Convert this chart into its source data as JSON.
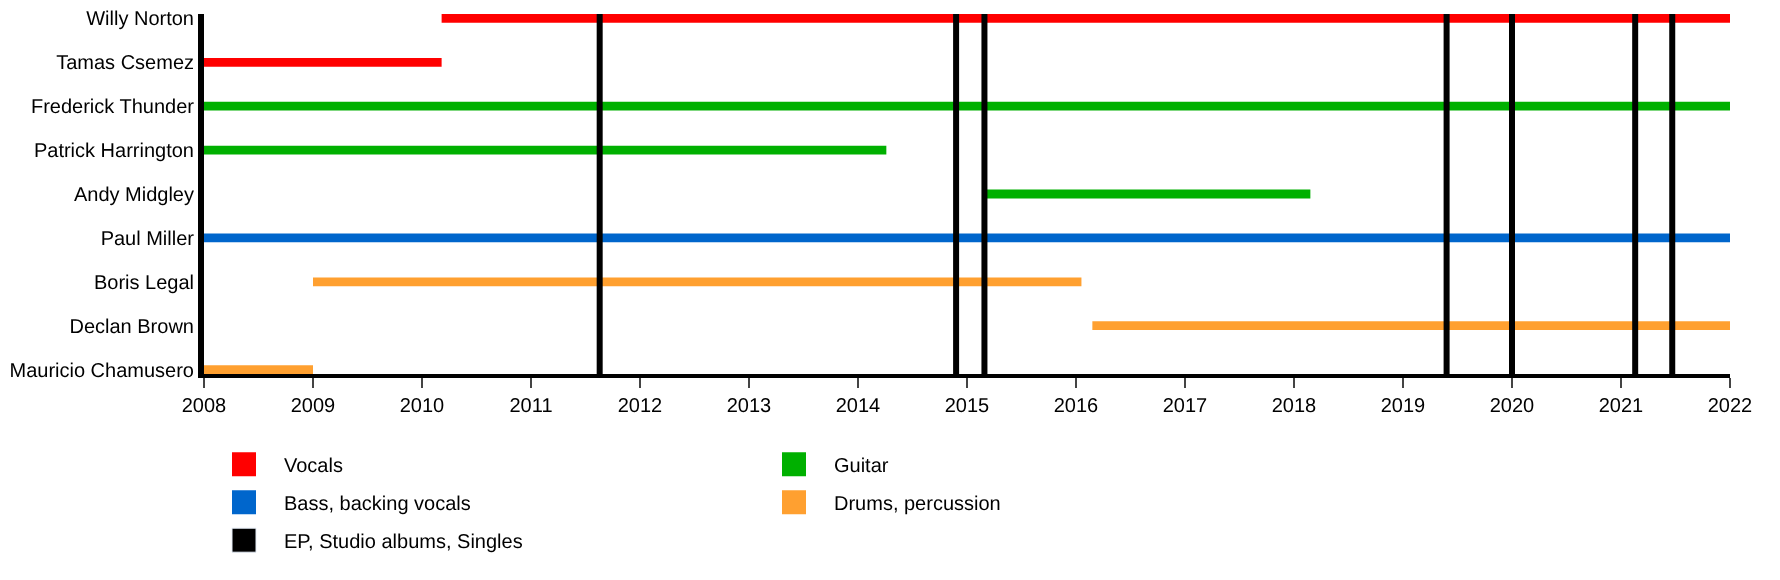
{
  "chart_data": {
    "type": "bar",
    "orientation": "horizontal",
    "categories": [
      "Willy Norton",
      "Tamas Csemez",
      "Frederick Thunder",
      "Patrick Harrington",
      "Andy Midgley",
      "Paul Miller",
      "Boris Legal",
      "Declan Brown",
      "Mauricio Chamusero"
    ],
    "series": [
      {
        "name": "Vocals",
        "color": "#ff0000",
        "base": [
          2010.18,
          2008,
          null,
          null,
          null,
          null,
          null,
          null,
          null
        ],
        "values": [
          11.82,
          2.18,
          null,
          null,
          null,
          null,
          null,
          null,
          null
        ]
      },
      {
        "name": "Guitar",
        "color": "#00b000",
        "base": [
          null,
          null,
          2008,
          2008,
          2015.14,
          null,
          null,
          null,
          null
        ],
        "values": [
          null,
          null,
          14,
          6.26,
          3.01,
          null,
          null,
          null,
          null
        ]
      },
      {
        "name": "Bass, backing vocals",
        "color": "#0066cc",
        "base": [
          null,
          null,
          null,
          null,
          null,
          2008,
          null,
          null,
          null
        ],
        "values": [
          null,
          null,
          null,
          null,
          null,
          14,
          null,
          null,
          null
        ]
      },
      {
        "name": "Drums, percussion",
        "color": "#ffa030",
        "base": [
          null,
          null,
          null,
          null,
          null,
          null,
          2009.0,
          2016.15,
          2008
        ],
        "values": [
          null,
          null,
          null,
          null,
          null,
          null,
          7.05,
          5.85,
          1.0
        ]
      }
    ],
    "ref_lines": [
      {
        "axis": "x",
        "value": 2011.63,
        "label": "EP, Studio albums, Singles",
        "color": "#000000"
      },
      {
        "axis": "x",
        "value": 2014.9,
        "color": "#000000"
      },
      {
        "axis": "x",
        "value": 2015.16,
        "color": "#000000"
      },
      {
        "axis": "x",
        "value": 2019.4,
        "color": "#000000"
      },
      {
        "axis": "x",
        "value": 2020.0,
        "color": "#000000"
      },
      {
        "axis": "x",
        "value": 2021.13,
        "color": "#000000"
      },
      {
        "axis": "x",
        "value": 2021.47,
        "color": "#000000"
      }
    ],
    "xlim": [
      2008,
      2022
    ],
    "xticks": [
      2008,
      2009,
      2010,
      2011,
      2012,
      2013,
      2014,
      2015,
      2016,
      2017,
      2018,
      2019,
      2020,
      2021,
      2022
    ],
    "legend": "bottom"
  }
}
